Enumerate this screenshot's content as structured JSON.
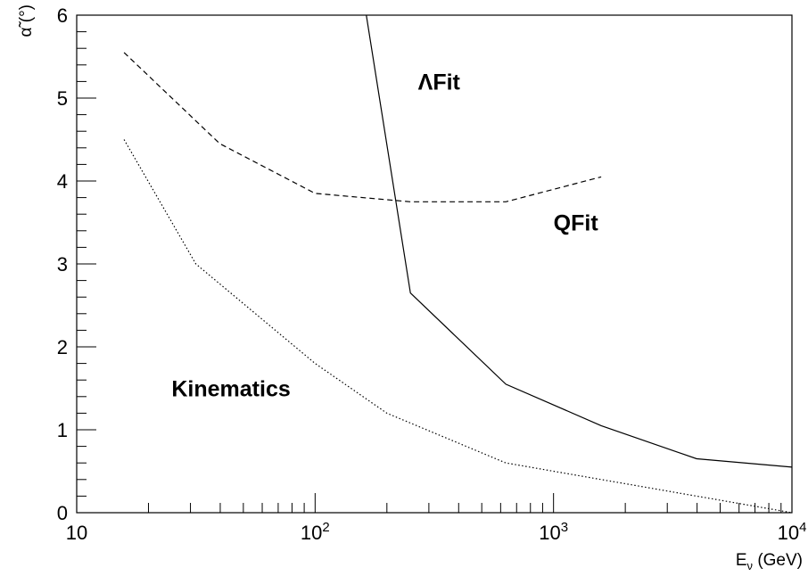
{
  "chart_data": {
    "type": "line",
    "xlabel_main": "E",
    "xlabel_sub": "ν",
    "xlabel_unit": " (GeV)",
    "ylabel_main": "α̃",
    "ylabel_unit": " (°)",
    "xscale": "log",
    "xlim": [
      10,
      10000
    ],
    "ylim": [
      0,
      6
    ],
    "grid": false,
    "x_ticks": [
      {
        "value": 10,
        "label": "10",
        "sup": ""
      },
      {
        "value": 100,
        "label": "10",
        "sup": "2"
      },
      {
        "value": 1000,
        "label": "10",
        "sup": "3"
      },
      {
        "value": 10000,
        "label": "10",
        "sup": "4"
      }
    ],
    "y_ticks": [
      {
        "value": 0,
        "label": "0"
      },
      {
        "value": 1,
        "label": "1"
      },
      {
        "value": 2,
        "label": "2"
      },
      {
        "value": 3,
        "label": "3"
      },
      {
        "value": 4,
        "label": "4"
      },
      {
        "value": 5,
        "label": "5"
      },
      {
        "value": 6,
        "label": "6"
      }
    ],
    "series": [
      {
        "name": "ΛFit",
        "style": "solid",
        "color": "#000000",
        "x": [
          150,
          251,
          631,
          1585,
          3981,
          10000
        ],
        "y": [
          6.7,
          2.65,
          1.55,
          1.05,
          0.65,
          0.55
        ]
      },
      {
        "name": "QFit",
        "style": "dashed",
        "color": "#000000",
        "x": [
          15.8,
          39.8,
          100,
          251,
          631,
          1585
        ],
        "y": [
          5.55,
          4.45,
          3.85,
          3.75,
          3.75,
          4.05
        ]
      },
      {
        "name": "Kinematics",
        "style": "dotted",
        "color": "#000000",
        "x": [
          15.8,
          31.6,
          100,
          200,
          631,
          1585,
          3981,
          10000
        ],
        "y": [
          4.5,
          3.0,
          1.8,
          1.2,
          0.6,
          0.4,
          0.2,
          0.0
        ]
      }
    ],
    "annotations": [
      {
        "text": "ΛFit",
        "x": 270,
        "y": 5.2
      },
      {
        "text": "QFit",
        "x": 1000,
        "y": 3.5
      },
      {
        "text": "Kinematics",
        "x": 25,
        "y": 1.5
      }
    ]
  }
}
